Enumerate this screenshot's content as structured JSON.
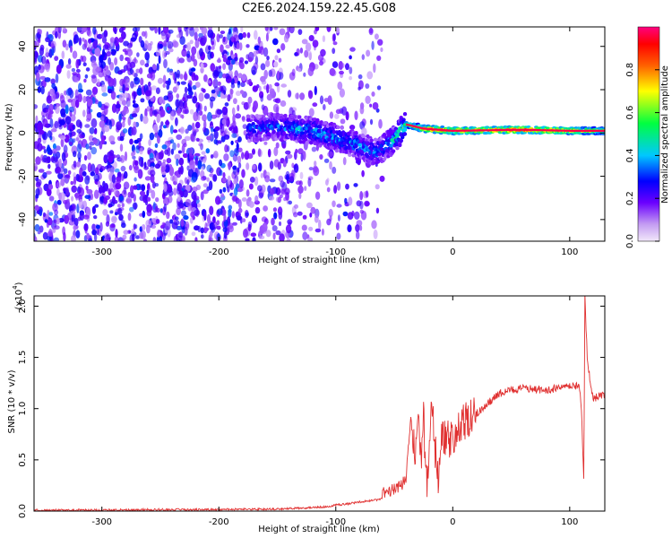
{
  "title": "C2E6.2024.159.22.45.G08",
  "chart_data": [
    {
      "type": "heatmap",
      "title": "C2E6.2024.159.22.45.G08",
      "xlabel": "Height of straight line (km)",
      "ylabel": "Frequency (Hz)",
      "xlim": [
        -358,
        130
      ],
      "ylim": [
        -50,
        49
      ],
      "x_ticks": [
        -300,
        -200,
        -100,
        0,
        100
      ],
      "y_ticks": [
        -40,
        -20,
        0,
        20,
        40
      ],
      "colorbar": {
        "label": "Normalized spectral amplitude",
        "range": [
          0,
          1
        ],
        "ticks": [
          "0.0",
          "0.2",
          "0.4",
          "0.6",
          "0.8"
        ],
        "colors": [
          "#f2e8fa",
          "#6a00ff",
          "#0000ff",
          "#00c8ff",
          "#00ff40",
          "#ffff00",
          "#ff6000",
          "#ff0000",
          "#ff0080"
        ]
      },
      "noise_region": {
        "x_from": -358,
        "x_to": -60,
        "max_amplitude": 0.15
      },
      "signal_band": {
        "points": [
          {
            "x": -175,
            "freq": 2
          },
          {
            "x": -150,
            "freq": 3
          },
          {
            "x": -120,
            "freq": 1
          },
          {
            "x": -90,
            "freq": -4
          },
          {
            "x": -65,
            "freq": -9
          },
          {
            "x": -50,
            "freq": -3
          },
          {
            "x": -40,
            "freq": 4
          },
          {
            "x": -25,
            "freq": 2
          },
          {
            "x": 0,
            "freq": 1
          },
          {
            "x": 60,
            "freq": 1.5
          },
          {
            "x": 100,
            "freq": 1
          },
          {
            "x": 130,
            "freq": 1
          }
        ],
        "amplitude": [
          {
            "x": -175,
            "value": 0.25
          },
          {
            "x": -120,
            "value": 0.35
          },
          {
            "x": -60,
            "value": 0.3
          },
          {
            "x": -35,
            "value": 0.55
          },
          {
            "x": -20,
            "value": 0.8
          },
          {
            "x": 20,
            "value": 0.75
          },
          {
            "x": 60,
            "value": 0.85
          },
          {
            "x": 110,
            "value": 0.7
          },
          {
            "x": 130,
            "value": 0.6
          }
        ]
      }
    },
    {
      "type": "line",
      "xlabel": "Height of straight line (km)",
      "ylabel": "SNR (10 * v/v)",
      "y_multiplier": "(x10",
      "y_multiplier_exp": "4",
      "xlim": [
        -358,
        130
      ],
      "ylim": [
        0,
        2.1
      ],
      "x_ticks": [
        -300,
        -200,
        -100,
        0,
        100
      ],
      "y_ticks": [
        "0.0",
        "0.5",
        "1.0",
        "1.5",
        "2.0"
      ],
      "series": [
        {
          "color": "#e03030",
          "x": [
            -358,
            -300,
            -250,
            -200,
            -150,
            -110,
            -100,
            -90,
            -80,
            -70,
            -60,
            -50,
            -45,
            -40,
            -38,
            -35,
            -32,
            -30,
            -28,
            -25,
            -22,
            -20,
            -18,
            -15,
            -12,
            -10,
            -5,
            0,
            5,
            10,
            15,
            20,
            30,
            40,
            50,
            60,
            70,
            80,
            90,
            100,
            105,
            108,
            110,
            112,
            113,
            115,
            118,
            120,
            125,
            130
          ],
          "y": [
            0.01,
            0.01,
            0.015,
            0.015,
            0.02,
            0.04,
            0.06,
            0.07,
            0.09,
            0.1,
            0.12,
            0.15,
            0.18,
            0.25,
            0.6,
            0.9,
            0.5,
            1.05,
            0.4,
            0.9,
            0.2,
            0.7,
            1.0,
            0.6,
            0.3,
            0.75,
            0.7,
            0.7,
            0.8,
            0.85,
            0.9,
            0.95,
            1.05,
            1.15,
            1.18,
            1.2,
            1.19,
            1.18,
            1.2,
            1.21,
            1.22,
            1.25,
            1.0,
            0.3,
            2.1,
            1.5,
            1.2,
            1.1,
            1.12,
            1.13
          ]
        }
      ]
    }
  ]
}
